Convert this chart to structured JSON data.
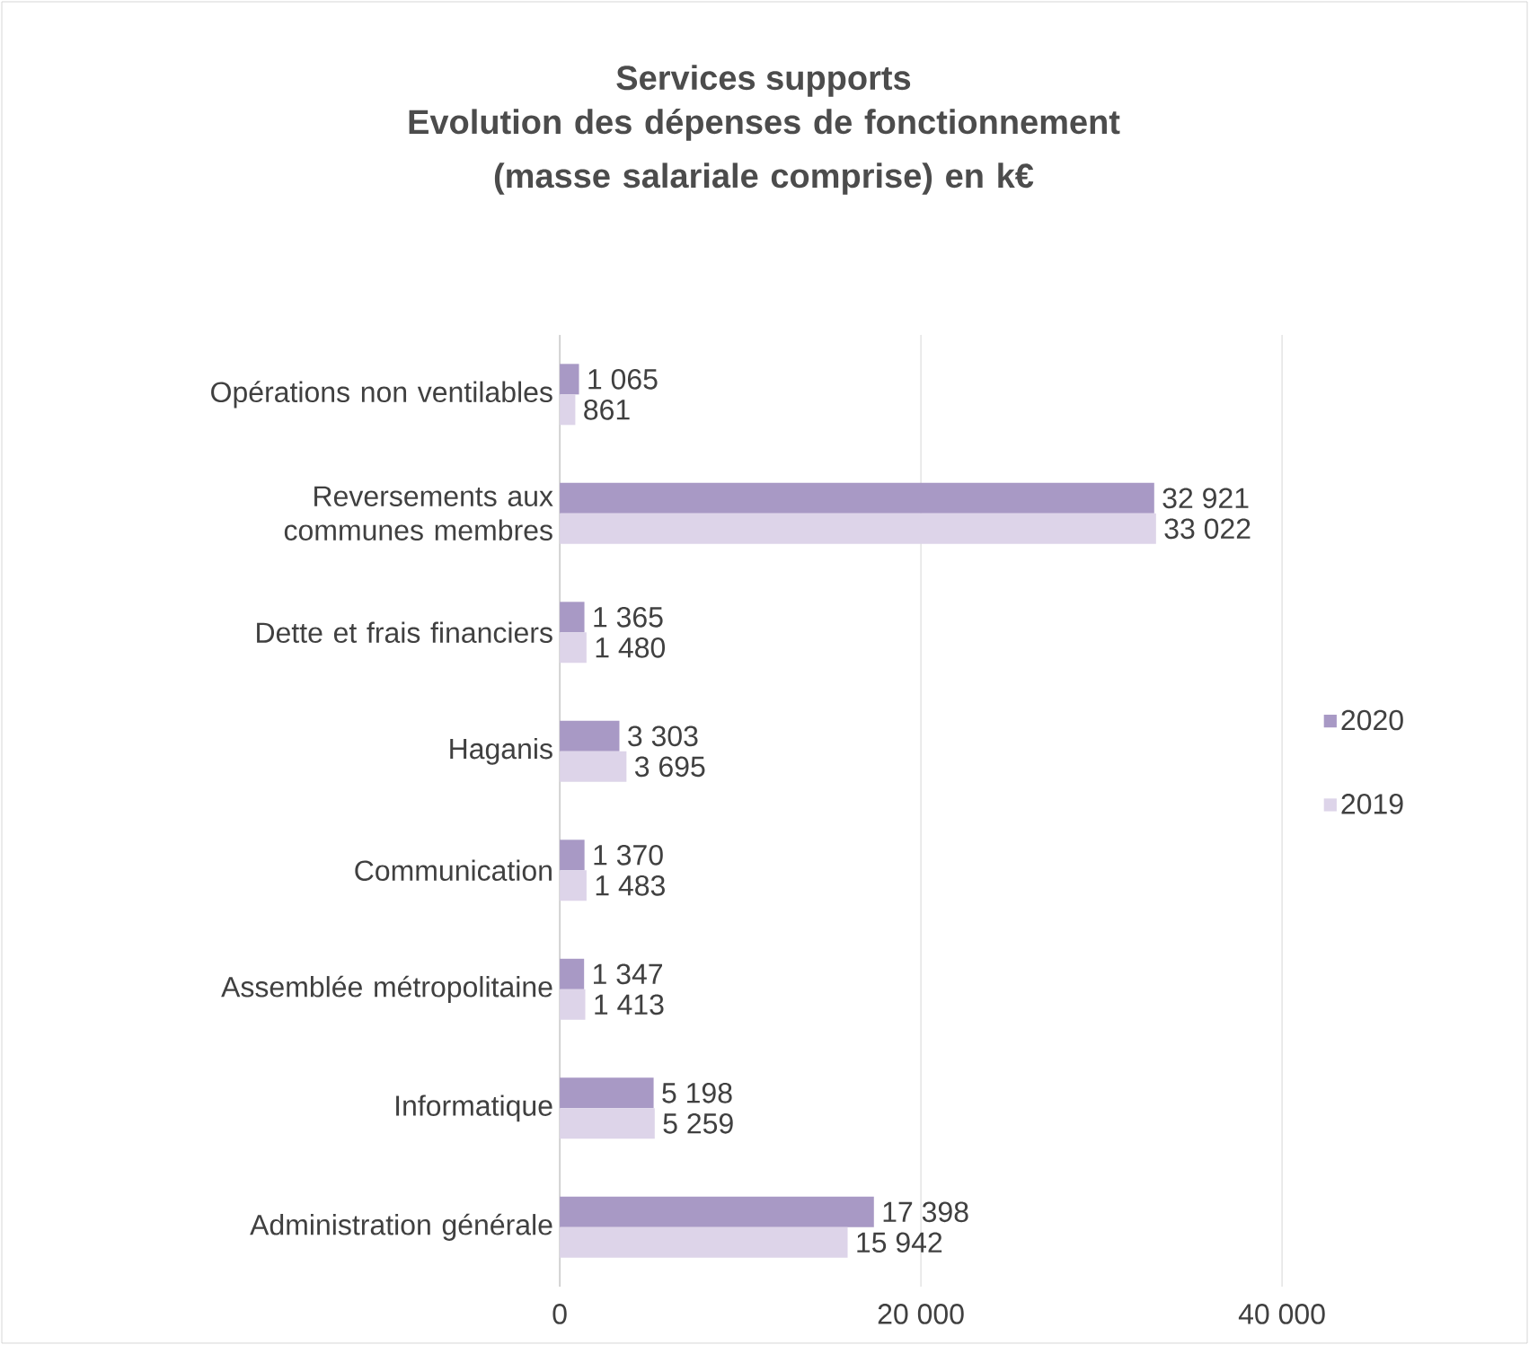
{
  "chart_data": {
    "type": "bar",
    "orientation": "horizontal",
    "title": "Services supports",
    "subtitle": "Evolution des dépenses de fonctionnement (masse salariale comprise) en k€",
    "categories": [
      "Opérations non ventilables",
      "Reversements aux communes membres",
      "Dette et frais financiers",
      "Haganis",
      "Communication",
      "Assemblée métropolitaine",
      "Informatique",
      "Administration générale"
    ],
    "series": [
      {
        "name": "2020",
        "color": "#a899c5",
        "values": [
          1065,
          32921,
          1365,
          3303,
          1370,
          1347,
          5198,
          17398
        ],
        "value_labels": [
          "1 065",
          "32 921",
          "1 365",
          "3 303",
          "1 370",
          "1 347",
          "5 198",
          "17 398"
        ]
      },
      {
        "name": "2019",
        "color": "#ddd4e9",
        "values": [
          861,
          33022,
          1480,
          3695,
          1483,
          1413,
          5259,
          15942
        ],
        "value_labels": [
          "861",
          "33 022",
          "1 480",
          "3 695",
          "1 483",
          "1 413",
          "5 259",
          "15 942"
        ]
      }
    ],
    "xlim": [
      0,
      40000
    ],
    "xticks": [
      0,
      {
        "value": 20000,
        "label": "20 000"
      },
      {
        "value": 40000,
        "label": "40 000"
      }
    ],
    "grid": "x",
    "legend": "right"
  }
}
